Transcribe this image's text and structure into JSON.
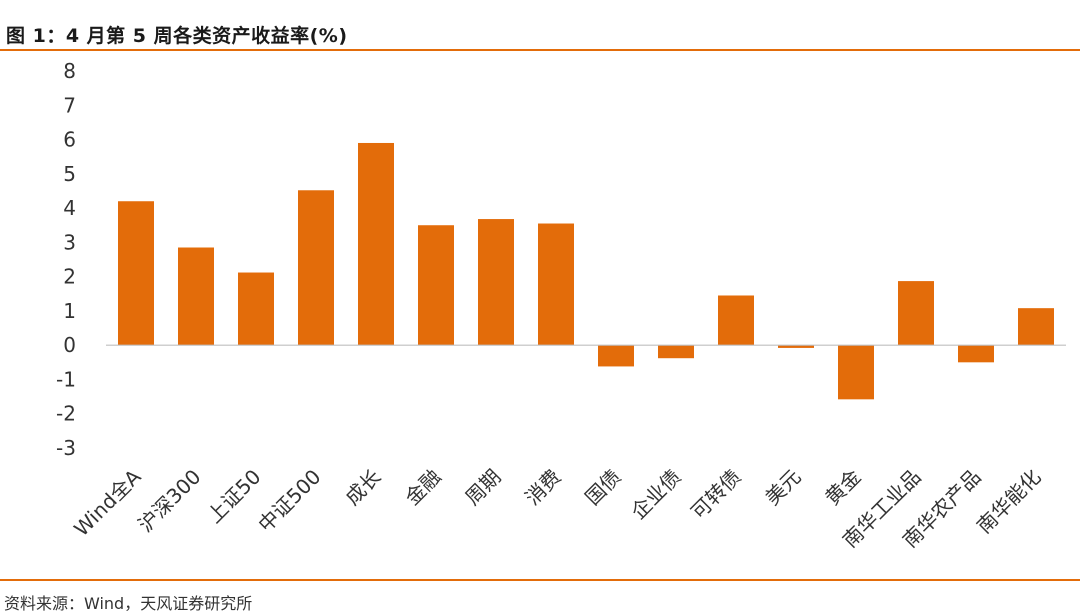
{
  "header": {
    "title": "图 1：4 月第 5 周各类资产收益率(%)"
  },
  "footer": {
    "source": "资料来源：Wind，天风证券研究所"
  },
  "colors": {
    "accent": "#e36c0a",
    "bar": "#e36c0a",
    "zero_line": "#bfbfbf"
  },
  "chart_data": {
    "type": "bar",
    "title": "图 1：4 月第 5 周各类资产收益率(%)",
    "xlabel": "",
    "ylabel": "",
    "ylim": [
      -3,
      8
    ],
    "yticks": [
      8,
      7,
      6,
      5,
      4,
      3,
      2,
      1,
      0,
      -1,
      -2,
      -3
    ],
    "grid": false,
    "legend": "none",
    "categories": [
      "Wind全A",
      "沪深300",
      "上证50",
      "中证500",
      "成长",
      "金融",
      "周期",
      "消费",
      "国债",
      "企业债",
      "可转债",
      "美元",
      "黄金",
      "南华工业品",
      "南华农产品",
      "南华能化"
    ],
    "values": [
      4.2,
      2.85,
      2.12,
      4.52,
      5.9,
      3.5,
      3.68,
      3.55,
      -0.62,
      -0.38,
      1.45,
      -0.08,
      -1.58,
      1.87,
      -0.5,
      1.08
    ]
  }
}
